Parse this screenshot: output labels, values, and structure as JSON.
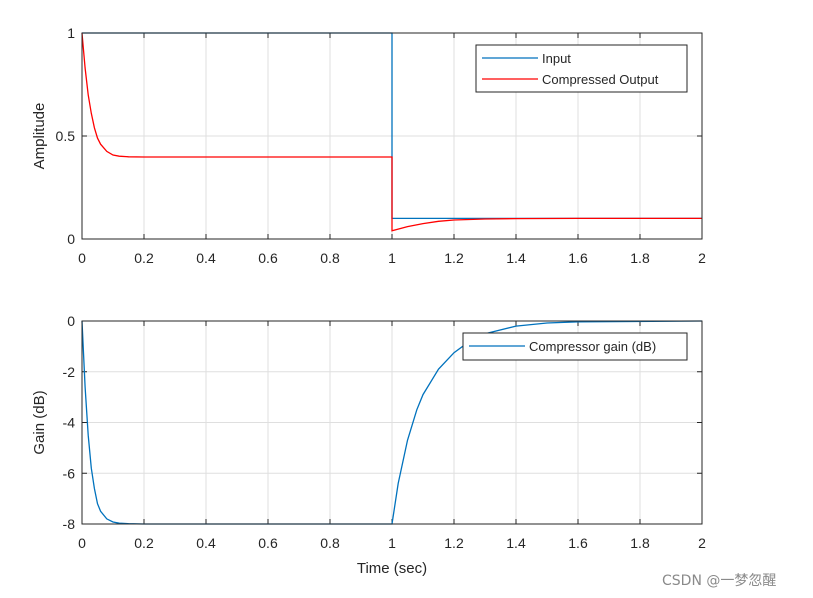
{
  "chart_data": [
    {
      "type": "line",
      "title": "",
      "xlabel": "",
      "ylabel": "Amplitude",
      "xlim": [
        0,
        2
      ],
      "ylim": [
        0,
        1
      ],
      "xticks": [
        "0",
        "0.2",
        "0.4",
        "0.6",
        "0.8",
        "1",
        "1.2",
        "1.4",
        "1.6",
        "1.8",
        "2"
      ],
      "yticks": [
        "0",
        "0.5",
        "1"
      ],
      "grid": true,
      "legend_position": "northeast",
      "series": [
        {
          "name": "Input",
          "color": "#0072bd",
          "x": [
            0,
            1,
            1,
            2
          ],
          "y": [
            1,
            1,
            0.1,
            0.1
          ]
        },
        {
          "name": "Compressed Output",
          "color": "#ff0000",
          "x": [
            0,
            0.01,
            0.02,
            0.03,
            0.04,
            0.05,
            0.06,
            0.08,
            0.1,
            0.12,
            0.15,
            0.2,
            0.5,
            1.0,
            1.0,
            1.05,
            1.1,
            1.15,
            1.2,
            1.3,
            1.4,
            1.6,
            2.0
          ],
          "y": [
            1.0,
            0.83,
            0.7,
            0.61,
            0.54,
            0.49,
            0.46,
            0.425,
            0.408,
            0.402,
            0.399,
            0.398,
            0.398,
            0.398,
            0.04,
            0.06,
            0.075,
            0.086,
            0.092,
            0.097,
            0.099,
            0.1,
            0.1
          ]
        }
      ]
    },
    {
      "type": "line",
      "title": "",
      "xlabel": "Time (sec)",
      "ylabel": "Gain (dB)",
      "xlim": [
        0,
        2
      ],
      "ylim": [
        -8,
        0
      ],
      "xticks": [
        "0",
        "0.2",
        "0.4",
        "0.6",
        "0.8",
        "1",
        "1.2",
        "1.4",
        "1.6",
        "1.8",
        "2"
      ],
      "yticks": [
        "-8",
        "-6",
        "-4",
        "-2",
        "0"
      ],
      "grid": true,
      "legend_position": "northeast",
      "series": [
        {
          "name": "Compressor gain (dB)",
          "color": "#0072bd",
          "x": [
            0,
            0.01,
            0.02,
            0.03,
            0.04,
            0.05,
            0.06,
            0.08,
            0.1,
            0.12,
            0.15,
            0.2,
            0.5,
            1.0,
            1.02,
            1.05,
            1.08,
            1.1,
            1.15,
            1.2,
            1.25,
            1.3,
            1.4,
            1.5,
            1.6,
            2.0
          ],
          "y": [
            0,
            -2.6,
            -4.5,
            -5.8,
            -6.6,
            -7.2,
            -7.5,
            -7.8,
            -7.92,
            -7.97,
            -7.99,
            -8,
            -8,
            -8,
            -6.4,
            -4.7,
            -3.5,
            -2.9,
            -1.9,
            -1.25,
            -0.8,
            -0.5,
            -0.2,
            -0.08,
            -0.03,
            0
          ]
        }
      ]
    }
  ],
  "watermark": "CSDN @一梦忽醒"
}
